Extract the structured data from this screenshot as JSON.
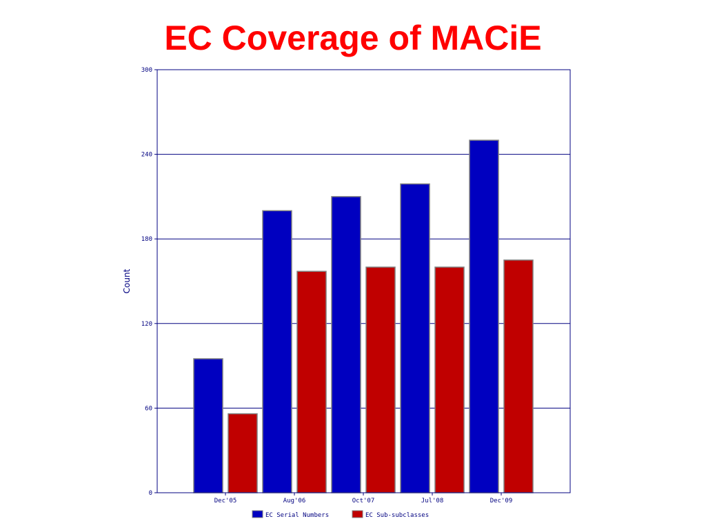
{
  "slide": {
    "title": "EC Coverage of MACiE"
  },
  "chart_data": {
    "type": "bar",
    "title": "EC Coverage of MACiE",
    "xlabel": "",
    "ylabel": "Count",
    "ylim": [
      0,
      300
    ],
    "yticks": [
      0,
      60,
      120,
      180,
      240,
      300
    ],
    "grid": true,
    "legend_position": "bottom",
    "categories": [
      "Dec'05",
      "Aug'06",
      "Oct'07",
      "Jul'08",
      "Dec'09"
    ],
    "series": [
      {
        "name": "EC Serial Numbers",
        "color": "#0000c0",
        "values": [
          95,
          200,
          210,
          219,
          250
        ]
      },
      {
        "name": "EC Sub-subclasses",
        "color": "#c00000",
        "values": [
          56,
          157,
          160,
          160,
          165
        ]
      }
    ],
    "colors": {
      "axis": "#000080",
      "grid": "#000080",
      "plot_bg": "#ffffff"
    }
  }
}
